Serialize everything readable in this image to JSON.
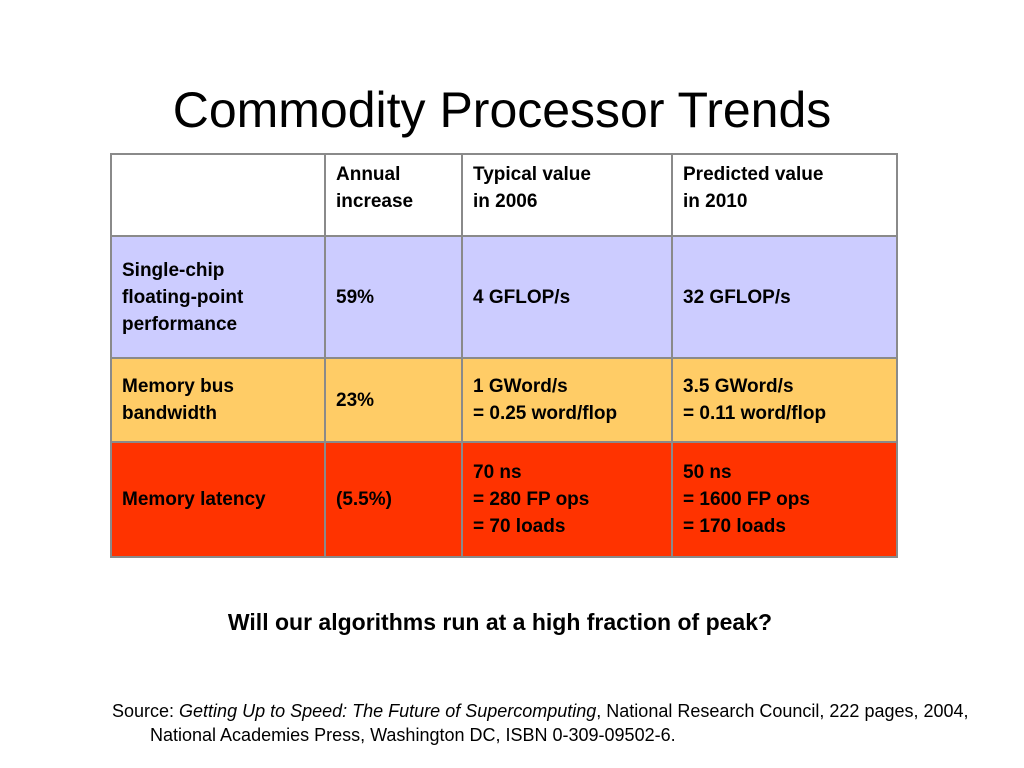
{
  "slide": {
    "title": "Commodity Processor Trends",
    "question": "Will our algorithms run at a high fraction of peak?",
    "source": {
      "prefix": "Source: ",
      "book_title": "Getting Up to Speed: The Future of Supercomputing",
      "rest": ", National Research Council, 222 pages, 2004, National Academies Press, Washington DC, ISBN 0-309-09502-6."
    }
  },
  "table": {
    "headers": [
      "",
      "Annual\nincrease",
      "Typical value\nin 2006",
      "Predicted value\nin 2010"
    ],
    "rows": [
      {
        "metric": "Single-chip\nfloating-point\nperformance",
        "annual_increase": "59%",
        "typical_2006": " 4  GFLOP/s",
        "predicted_2010": " 32  GFLOP/s"
      },
      {
        "metric": "Memory bus\nbandwidth",
        "annual_increase": "23%",
        "typical_2006": " 1  GWord/s\n= 0.25 word/flop",
        "predicted_2010": " 3.5  GWord/s\n= 0.11 word/flop"
      },
      {
        "metric": "Memory latency",
        "annual_increase": "(5.5%)",
        "typical_2006": "70 ns\n= 280 FP ops\n= 70 loads",
        "predicted_2010": "50 ns\n= 1600 FP ops\n= 170 loads"
      }
    ],
    "row_colors": [
      "#ccccff",
      "#ffcc66",
      "#ff3300"
    ]
  }
}
